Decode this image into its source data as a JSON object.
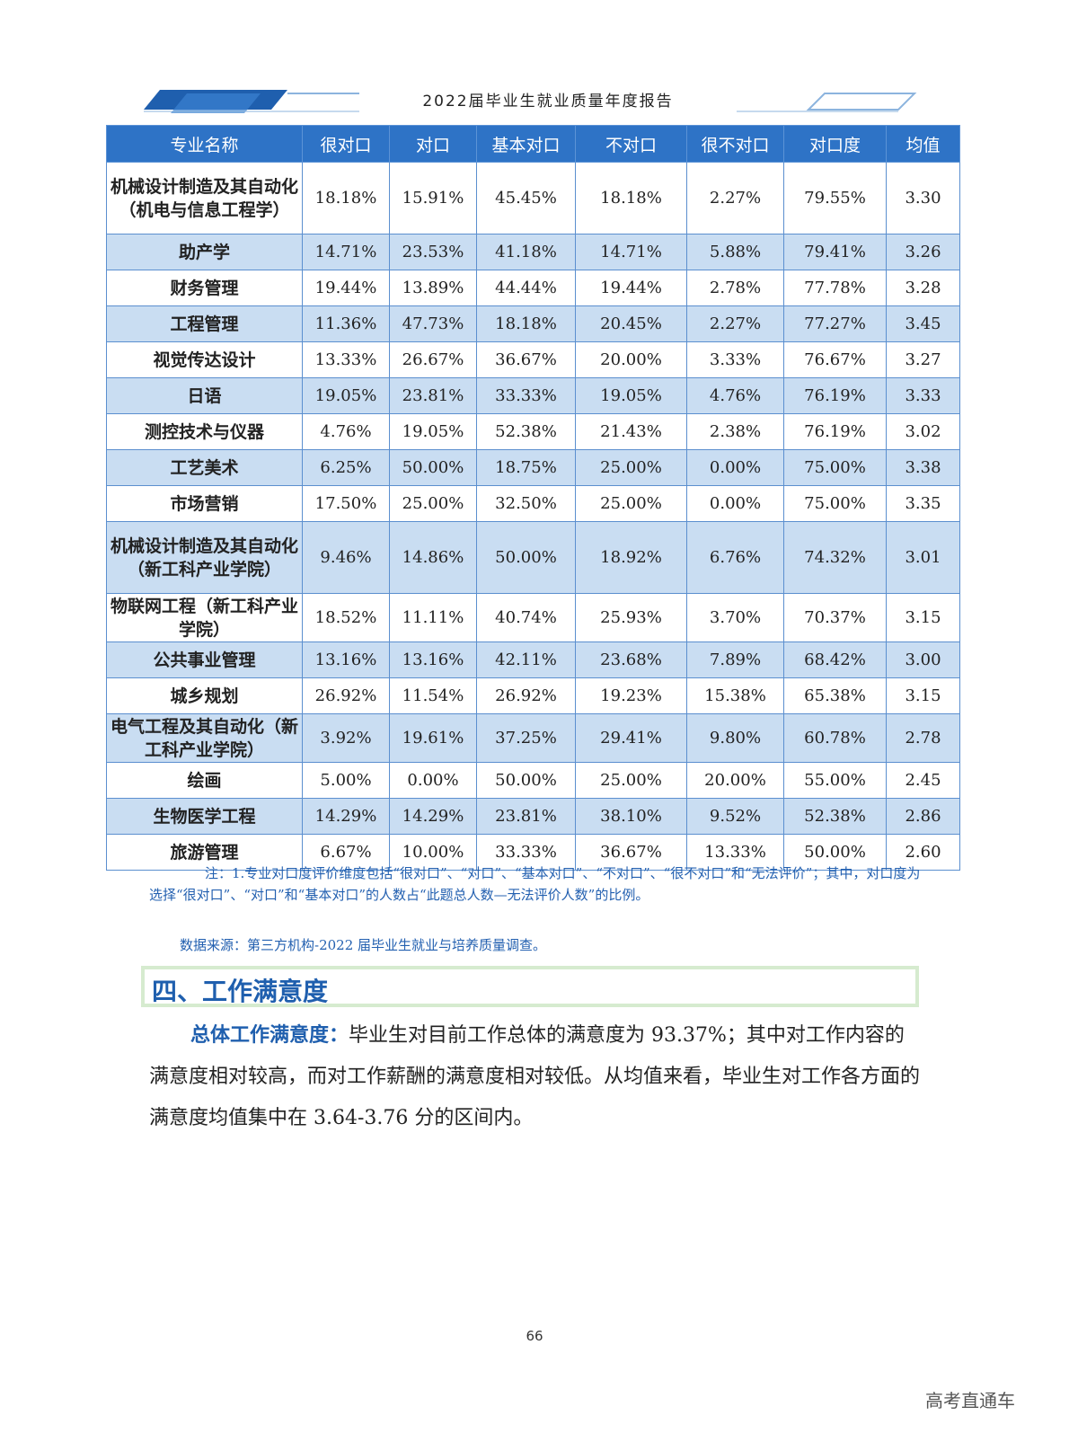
{
  "header": {
    "title": "2022届毕业生就业质量年度报告"
  },
  "table": {
    "columns": [
      "专业名称",
      "很对口",
      "对口",
      "基本对口",
      "不对口",
      "很不对口",
      "对口度",
      "均值"
    ],
    "rows": [
      [
        "机械设计制造及其自动化（机电与信息工程学）",
        "18.18%",
        "15.91%",
        "45.45%",
        "18.18%",
        "2.27%",
        "79.55%",
        "3.30"
      ],
      [
        "助产学",
        "14.71%",
        "23.53%",
        "41.18%",
        "14.71%",
        "5.88%",
        "79.41%",
        "3.26"
      ],
      [
        "财务管理",
        "19.44%",
        "13.89%",
        "44.44%",
        "19.44%",
        "2.78%",
        "77.78%",
        "3.28"
      ],
      [
        "工程管理",
        "11.36%",
        "47.73%",
        "18.18%",
        "20.45%",
        "2.27%",
        "77.27%",
        "3.45"
      ],
      [
        "视觉传达设计",
        "13.33%",
        "26.67%",
        "36.67%",
        "20.00%",
        "3.33%",
        "76.67%",
        "3.27"
      ],
      [
        "日语",
        "19.05%",
        "23.81%",
        "33.33%",
        "19.05%",
        "4.76%",
        "76.19%",
        "3.33"
      ],
      [
        "测控技术与仪器",
        "4.76%",
        "19.05%",
        "52.38%",
        "21.43%",
        "2.38%",
        "76.19%",
        "3.02"
      ],
      [
        "工艺美术",
        "6.25%",
        "50.00%",
        "18.75%",
        "25.00%",
        "0.00%",
        "75.00%",
        "3.38"
      ],
      [
        "市场营销",
        "17.50%",
        "25.00%",
        "32.50%",
        "25.00%",
        "0.00%",
        "75.00%",
        "3.35"
      ],
      [
        "机械设计制造及其自动化（新工科产业学院）",
        "9.46%",
        "14.86%",
        "50.00%",
        "18.92%",
        "6.76%",
        "74.32%",
        "3.01"
      ],
      [
        "物联网工程（新工科产业学院）",
        "18.52%",
        "11.11%",
        "40.74%",
        "25.93%",
        "3.70%",
        "70.37%",
        "3.15"
      ],
      [
        "公共事业管理",
        "13.16%",
        "13.16%",
        "42.11%",
        "23.68%",
        "7.89%",
        "68.42%",
        "3.00"
      ],
      [
        "城乡规划",
        "26.92%",
        "11.54%",
        "26.92%",
        "19.23%",
        "15.38%",
        "65.38%",
        "3.15"
      ],
      [
        "电气工程及其自动化（新工科产业学院）",
        "3.92%",
        "19.61%",
        "37.25%",
        "29.41%",
        "9.80%",
        "60.78%",
        "2.78"
      ],
      [
        "绘画",
        "5.00%",
        "0.00%",
        "50.00%",
        "25.00%",
        "20.00%",
        "55.00%",
        "2.45"
      ],
      [
        "生物医学工程",
        "14.29%",
        "14.29%",
        "23.81%",
        "38.10%",
        "9.52%",
        "52.38%",
        "2.86"
      ],
      [
        "旅游管理",
        "6.67%",
        "10.00%",
        "33.33%",
        "36.67%",
        "13.33%",
        "50.00%",
        "2.60"
      ]
    ]
  },
  "notes": {
    "note1": "注：1.专业对口度评价维度包括“很对口”、“对口”、“基本对口”、“不对口”、“很不对口”和“无法评价”；其中，对口度为选择“很对口”、“对口”和“基本对口”的人数占“此题总人数—无法评价人数”的比例。",
    "source": "数据来源：第三方机构-2022 届毕业生就业与培养质量调查。"
  },
  "section": {
    "title": "四、工作满意度"
  },
  "paragraph": {
    "lead": "总体工作满意度：",
    "text": "毕业生对目前工作总体的满意度为 93.37%；其中对工作内容的满意度相对较高，而对工作薪酬的满意度相对较低。从均值来看，毕业生对工作各方面的满意度均值集中在 3.64-3.76 分的区间内。"
  },
  "page_number": "66",
  "watermark": "高考直通车",
  "colors": {
    "table_header": "#2e73c6",
    "row_shade": "#c9ddf2",
    "accent_text": "#1f5fae"
  }
}
